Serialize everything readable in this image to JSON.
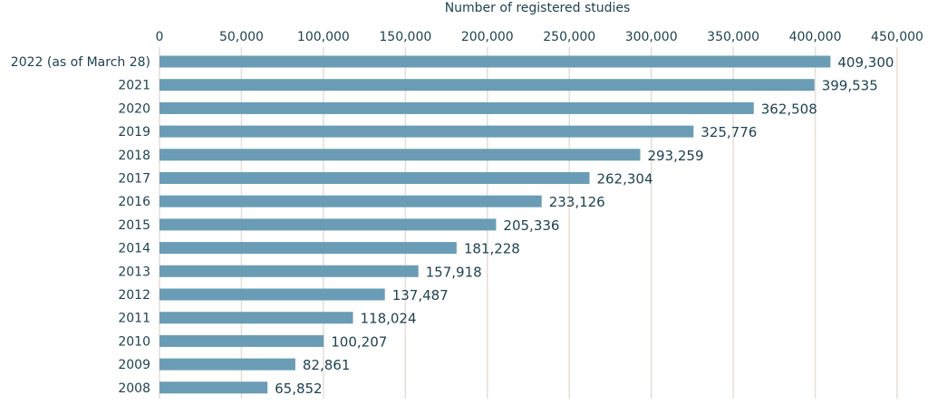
{
  "chart_data": {
    "type": "bar",
    "orientation": "horizontal",
    "title": "",
    "xlabel": "Number of registered studies",
    "ylabel": "",
    "xlim": [
      0,
      450000
    ],
    "x_ticks": [
      0,
      50000,
      100000,
      150000,
      200000,
      250000,
      300000,
      350000,
      400000,
      450000
    ],
    "x_tick_labels": [
      "0",
      "50,000",
      "100,000",
      "150,000",
      "200,000",
      "250,000",
      "300,000",
      "350,000",
      "400,000",
      "450,000"
    ],
    "x_axis_position": "top",
    "grid": true,
    "categories": [
      "2022 (as of March 28)",
      "2021",
      "2020",
      "2019",
      "2018",
      "2017",
      "2016",
      "2015",
      "2014",
      "2013",
      "2012",
      "2011",
      "2010",
      "2009",
      "2008"
    ],
    "values": [
      409300,
      399535,
      362508,
      325776,
      293259,
      262304,
      233126,
      205336,
      181228,
      157918,
      137487,
      118024,
      100207,
      82861,
      65852
    ],
    "value_labels": [
      "409,300",
      "399,535",
      "362,508",
      "325,776",
      "293,259",
      "262,304",
      "233,126",
      "205,336",
      "181,228",
      "157,918",
      "137,487",
      "118,024",
      "100,207",
      "82,861",
      "65,852"
    ],
    "colors": {
      "bar": "#6a9db5",
      "text": "#1f4350",
      "grid": "#e6ded8"
    }
  }
}
